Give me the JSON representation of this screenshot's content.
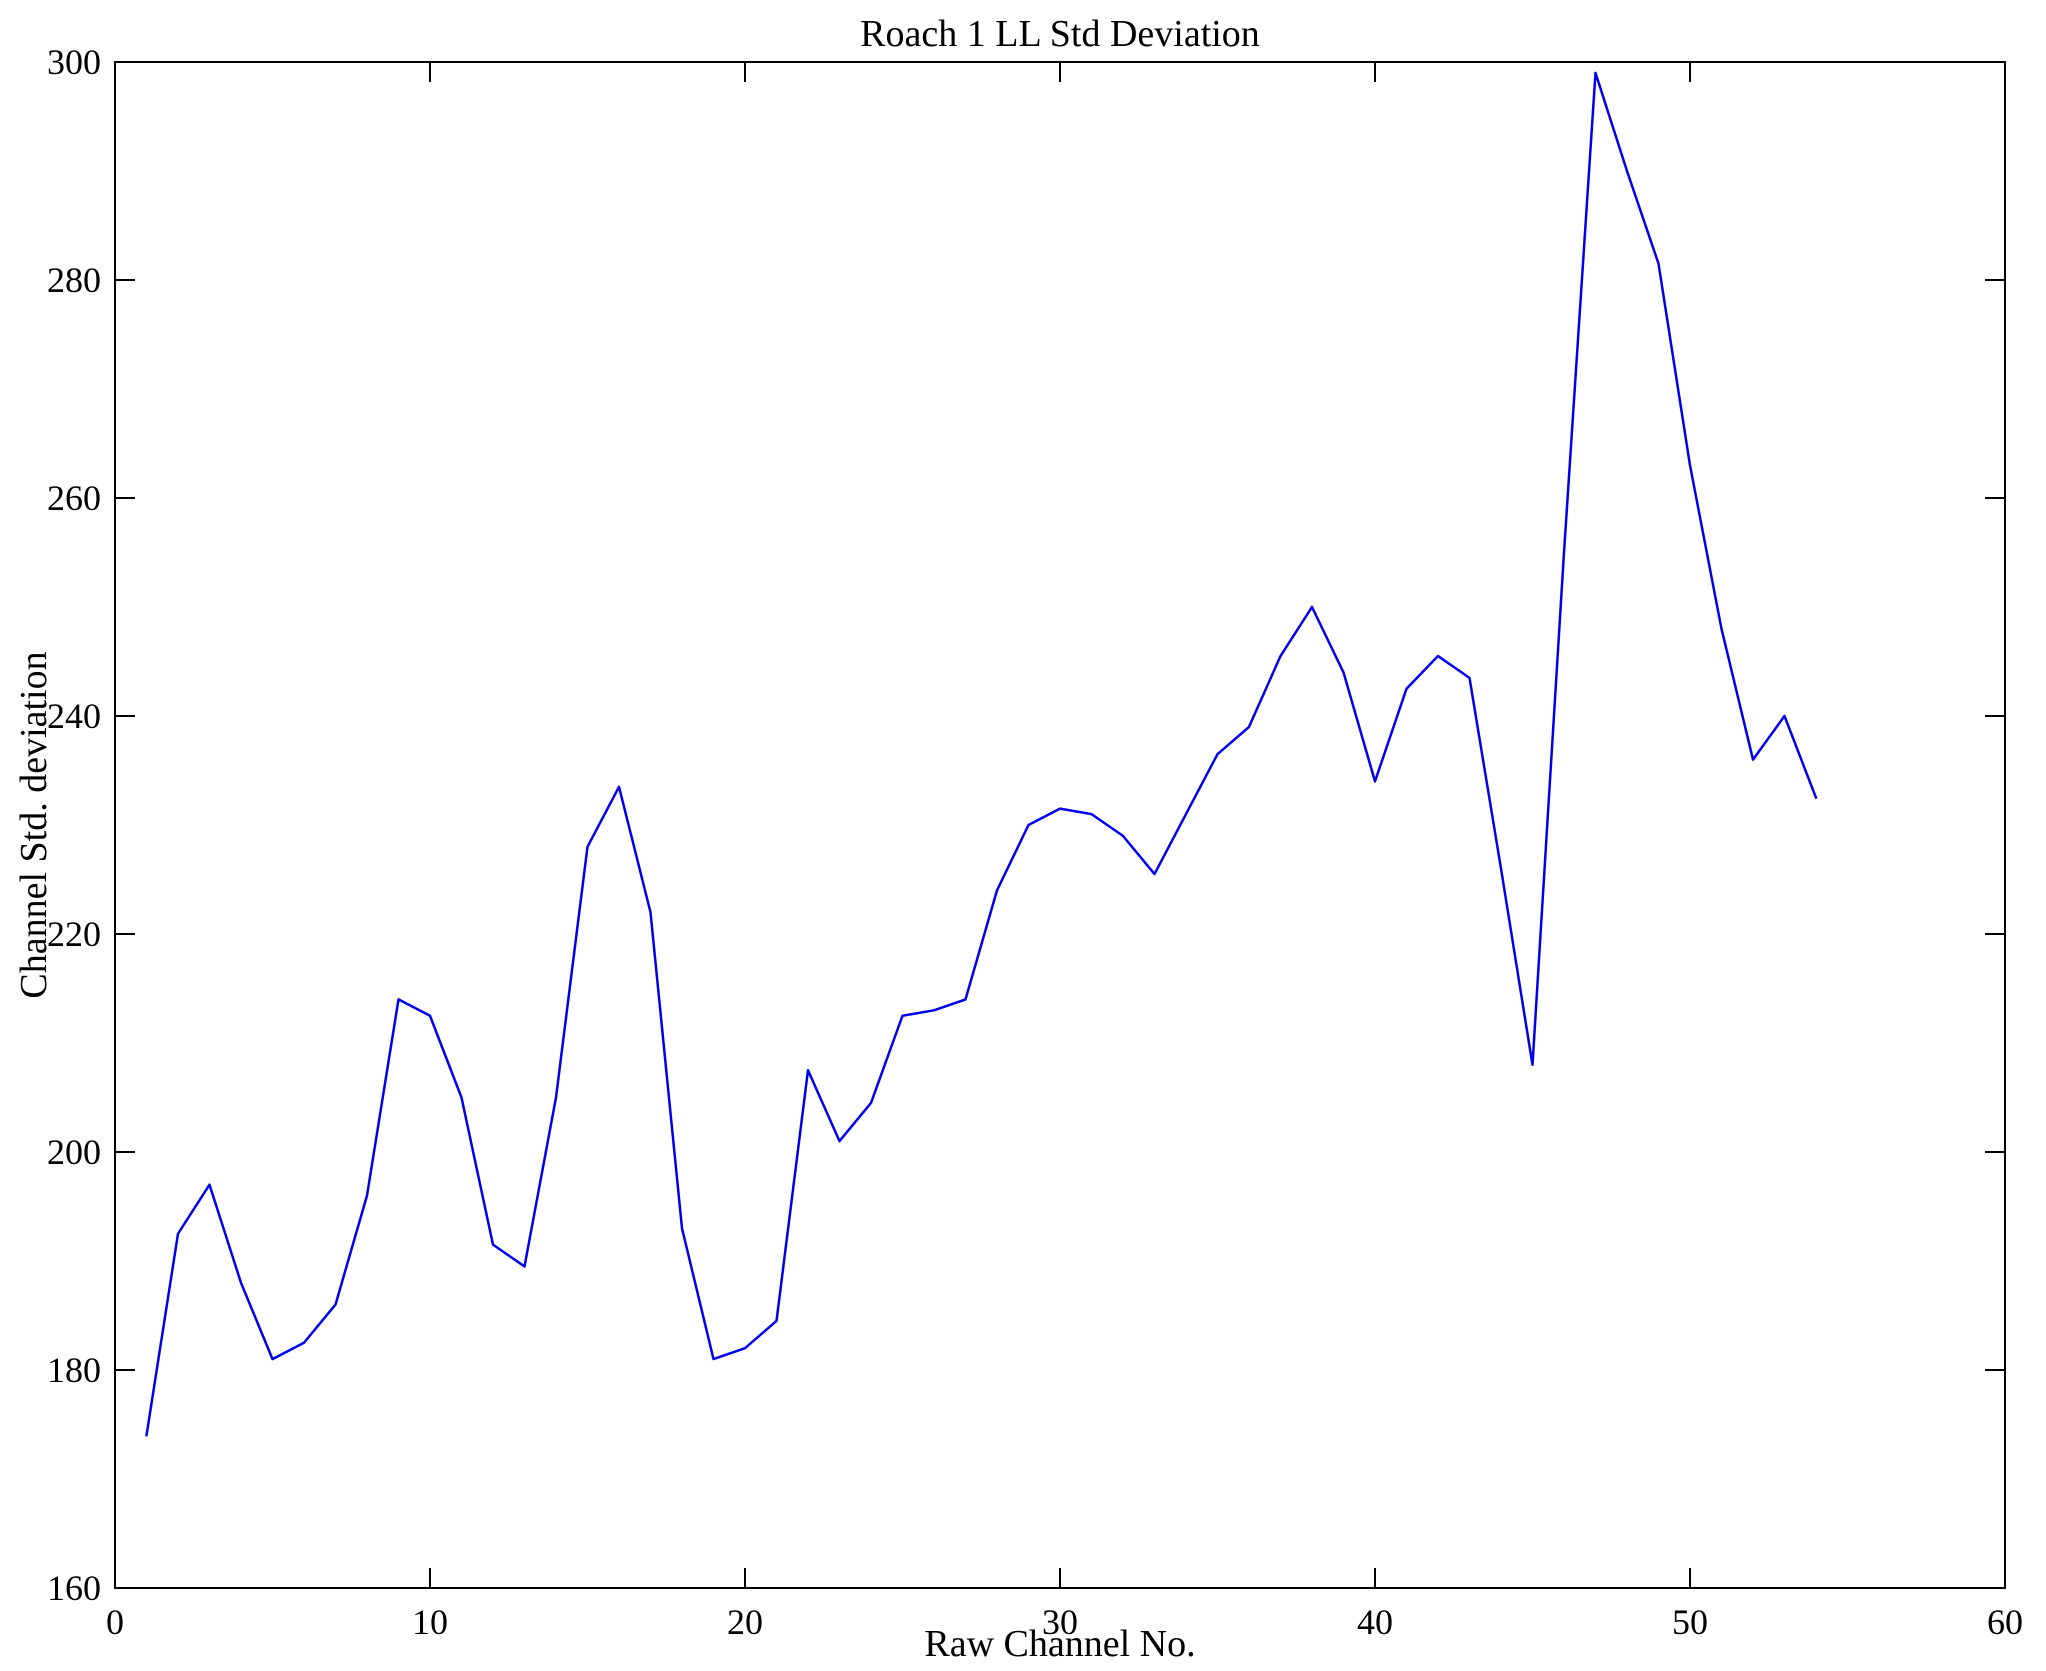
{
  "chart_data": {
    "type": "line",
    "title": "Roach 1 LL Std Deviation",
    "xlabel": "Raw Channel No.",
    "ylabel": "Channel Std. deviation",
    "xlim": [
      0,
      60
    ],
    "ylim": [
      160,
      300
    ],
    "xticks": [
      0,
      10,
      20,
      30,
      40,
      50,
      60
    ],
    "yticks": [
      160,
      180,
      200,
      220,
      240,
      260,
      280,
      300
    ],
    "grid": false,
    "legend": null,
    "line_color": "#0000EE",
    "x": [
      1,
      2,
      3,
      4,
      5,
      6,
      7,
      8,
      9,
      10,
      11,
      12,
      13,
      14,
      15,
      16,
      17,
      18,
      19,
      20,
      21,
      22,
      23,
      24,
      25,
      26,
      27,
      28,
      29,
      30,
      31,
      32,
      33,
      34,
      35,
      36,
      37,
      38,
      39,
      40,
      41,
      42,
      43,
      44,
      45,
      46,
      47,
      48,
      49,
      50,
      51,
      52,
      53,
      54
    ],
    "values": [
      174,
      192.5,
      197,
      188,
      181,
      182.5,
      186,
      196,
      214,
      212.5,
      205,
      191.5,
      189.5,
      205,
      228,
      233.5,
      222,
      193,
      181,
      182,
      184.5,
      207.5,
      201,
      204.5,
      212.5,
      213,
      214,
      224,
      230,
      231.5,
      231,
      229,
      225.5,
      231,
      236.5,
      239,
      245.5,
      250,
      244,
      234,
      242.5,
      245.5,
      243.5,
      226,
      208,
      255,
      299,
      290,
      281.5,
      263,
      248,
      236,
      240,
      232.5
    ]
  }
}
